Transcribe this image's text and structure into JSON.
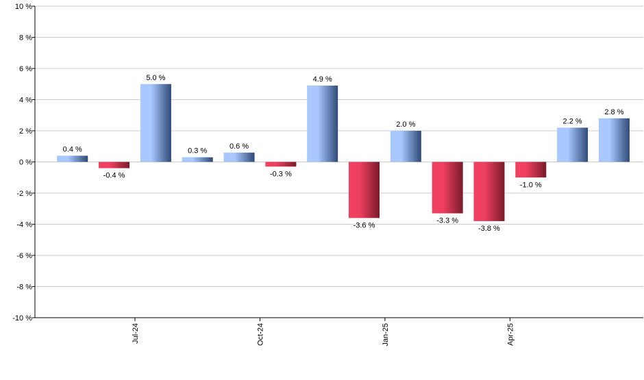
{
  "chart_data": {
    "type": "bar",
    "title": "",
    "xlabel": "",
    "ylabel": "",
    "ylim": [
      -10,
      10
    ],
    "y_ticks": [
      {
        "value": 10,
        "label": "10 %"
      },
      {
        "value": 8,
        "label": "8 %"
      },
      {
        "value": 6,
        "label": "6 %"
      },
      {
        "value": 4,
        "label": "4 %"
      },
      {
        "value": 2,
        "label": "2 %"
      },
      {
        "value": 0,
        "label": "0 %"
      },
      {
        "value": -2,
        "label": "-2 %"
      },
      {
        "value": -4,
        "label": "-4 %"
      },
      {
        "value": -6,
        "label": "-6 %"
      },
      {
        "value": -8,
        "label": "-8 %"
      },
      {
        "value": -10,
        "label": "-10 %"
      }
    ],
    "x_ticks": [
      {
        "label": "Jul-24",
        "after_bar": 2
      },
      {
        "label": "Oct-24",
        "after_bar": 5
      },
      {
        "label": "Jan-25",
        "after_bar": 8
      },
      {
        "label": "Apr-25",
        "after_bar": 11
      }
    ],
    "values": [
      0.4,
      -0.4,
      5.0,
      0.3,
      0.6,
      -0.3,
      4.9,
      -3.6,
      2.0,
      -3.3,
      -3.8,
      -1.0,
      2.2,
      2.8
    ],
    "data_labels": [
      "0.4 %",
      "-0.4 %",
      "5.0 %",
      "0.3 %",
      "0.6 %",
      "-0.3 %",
      "4.9 %",
      "-3.6 %",
      "2.0 %",
      "-3.3 %",
      "-3.8 %",
      "-1.0 %",
      "2.2 %",
      "2.8 %"
    ],
    "grid": true,
    "colors": {
      "positive_light": "#a9c8ff",
      "positive_dark": "#2f4a78",
      "negative_light": "#f04060",
      "negative_dark": "#7a1a2a",
      "grid": "#cccccc",
      "axis": "#000000"
    }
  }
}
